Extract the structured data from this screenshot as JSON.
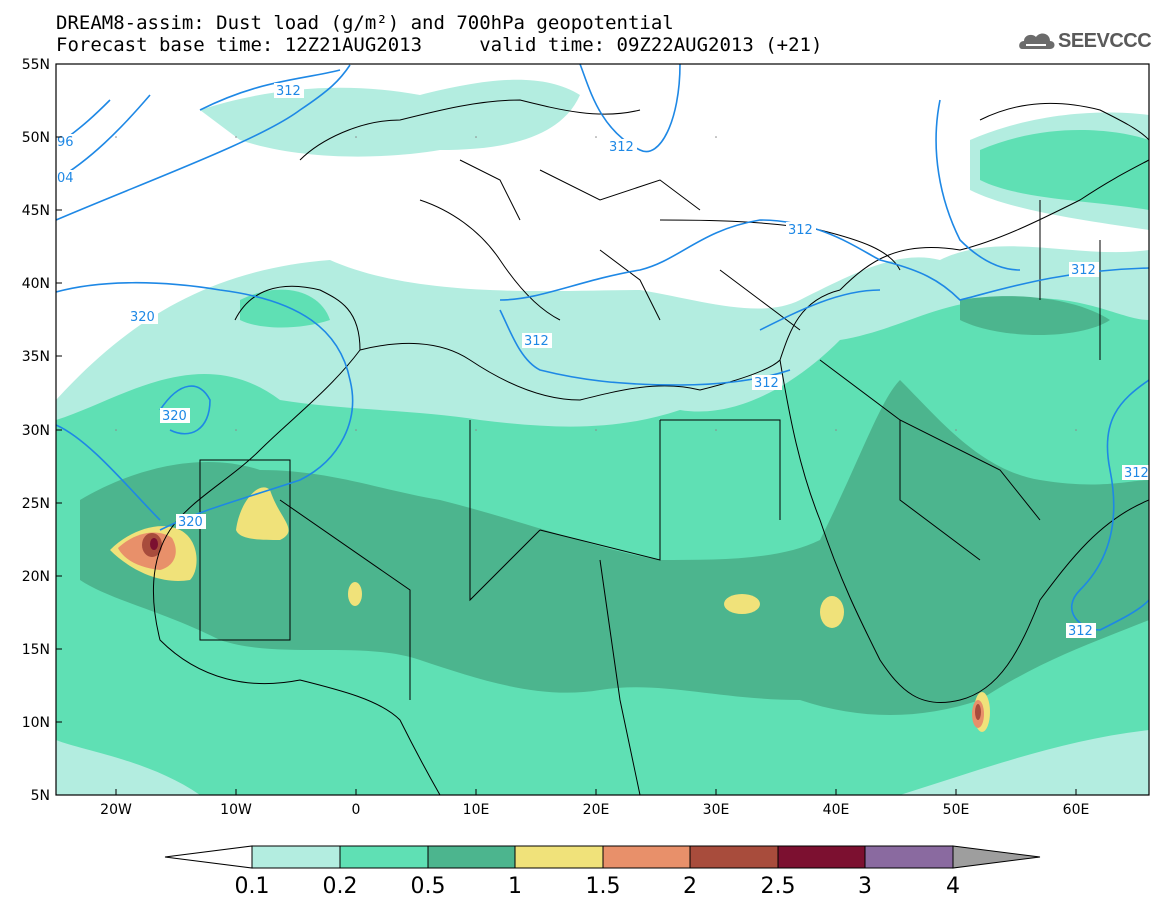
{
  "title": {
    "line1": "DREAM8-assim: Dust load (g/m²) and 700hPa geopotential",
    "line2": "Forecast base time: 12Z21AUG2013     valid time: 09Z22AUG2013 (+21)"
  },
  "logo": {
    "text": "SEEVCCC"
  },
  "axes": {
    "lon_labels": [
      "20W",
      "10W",
      "0",
      "10E",
      "20E",
      "30E",
      "40E",
      "50E",
      "60E"
    ],
    "lat_labels": [
      "55N",
      "50N",
      "45N",
      "40N",
      "35N",
      "30N",
      "25N",
      "20N",
      "15N",
      "10N",
      "5N"
    ]
  },
  "colorbar": {
    "levels": [
      "0.1",
      "0.2",
      "0.5",
      "1",
      "1.5",
      "2",
      "2.5",
      "3",
      "4"
    ],
    "colors": [
      "#b3ede0",
      "#5fe0b4",
      "#4cb58e",
      "#f0e27a",
      "#e8906a",
      "#a84c3c",
      "#7c1030",
      "#8a6aa0"
    ]
  },
  "contour_labels": {
    "l312a": "312",
    "l312b": "312",
    "l312c": "312",
    "l312d": "312",
    "l312e": "312",
    "l312f": "312",
    "l312g": "312",
    "l312h": "312",
    "l320a": "320",
    "l320b": "320",
    "l320c": "320",
    "l296": "96",
    "l304": "04"
  },
  "colors": {
    "contour": "#1e88e5",
    "land_border": "#000000",
    "frame": "#000000"
  }
}
